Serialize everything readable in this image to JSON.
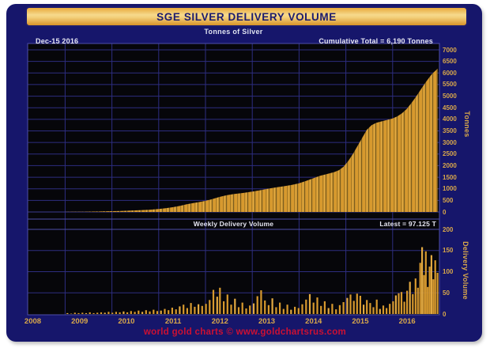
{
  "header": {
    "title": "SGE SILVER DELIVERY VOLUME"
  },
  "footer": {
    "credit": "world gold charts © www.goldchartsrus.com"
  },
  "colors": {
    "frame_navy": "#16166b",
    "panel_black": "#06060a",
    "grid_blue": "#2d2d80",
    "border_blue": "#4d4da8",
    "bar_gold": "#d7992e",
    "tick_gold": "#d9a84a",
    "annotation_white": "#e6e6f2",
    "title_navy": "#1b1b6e",
    "credit_red": "#cc1033"
  },
  "chart_data": {
    "type": "area+bar",
    "x": {
      "ticks": [
        2008,
        2009,
        2010,
        2011,
        2012,
        2013,
        2014,
        2015,
        2016
      ],
      "lim": [
        2008.2,
        2017.0
      ]
    },
    "panels": [
      {
        "name": "cumulative",
        "title": "Tonnes of Silver",
        "annotation_left": "Dec-15 2016",
        "annotation_right": "Cumulative Total = 6,190 Tonnes",
        "ylabel": "Tonnes",
        "ylim": [
          0,
          7000
        ],
        "yticks": [
          7000,
          6500,
          6000,
          5500,
          5000,
          4500,
          4000,
          3500,
          3000,
          2500,
          2000,
          1500,
          1000,
          500,
          0
        ],
        "series": {
          "name": "Cumulative SGE Silver Delivery (Tonnes)",
          "points": [
            [
              2009.0,
              3
            ],
            [
              2009.2,
              6
            ],
            [
              2009.4,
              10
            ],
            [
              2009.6,
              16
            ],
            [
              2009.8,
              24
            ],
            [
              2010.0,
              34
            ],
            [
              2010.2,
              46
            ],
            [
              2010.4,
              60
            ],
            [
              2010.6,
              76
            ],
            [
              2010.8,
              96
            ],
            [
              2011.0,
              125
            ],
            [
              2011.15,
              160
            ],
            [
              2011.3,
              205
            ],
            [
              2011.45,
              260
            ],
            [
              2011.6,
              330
            ],
            [
              2011.75,
              390
            ],
            [
              2011.9,
              440
            ],
            [
              2012.0,
              480
            ],
            [
              2012.1,
              530
            ],
            [
              2012.2,
              590
            ],
            [
              2012.3,
              650
            ],
            [
              2012.45,
              720
            ],
            [
              2012.6,
              770
            ],
            [
              2012.8,
              820
            ],
            [
              2013.0,
              880
            ],
            [
              2013.15,
              930
            ],
            [
              2013.3,
              990
            ],
            [
              2013.5,
              1060
            ],
            [
              2013.7,
              1120
            ],
            [
              2013.85,
              1170
            ],
            [
              2014.0,
              1240
            ],
            [
              2014.15,
              1340
            ],
            [
              2014.3,
              1450
            ],
            [
              2014.45,
              1560
            ],
            [
              2014.6,
              1640
            ],
            [
              2014.75,
              1720
            ],
            [
              2014.85,
              1800
            ],
            [
              2014.95,
              1950
            ],
            [
              2015.05,
              2200
            ],
            [
              2015.15,
              2500
            ],
            [
              2015.25,
              2850
            ],
            [
              2015.35,
              3200
            ],
            [
              2015.45,
              3550
            ],
            [
              2015.55,
              3750
            ],
            [
              2015.65,
              3850
            ],
            [
              2015.8,
              3930
            ],
            [
              2015.9,
              3980
            ],
            [
              2016.0,
              4040
            ],
            [
              2016.1,
              4130
            ],
            [
              2016.2,
              4260
            ],
            [
              2016.3,
              4450
            ],
            [
              2016.4,
              4700
            ],
            [
              2016.5,
              4980
            ],
            [
              2016.6,
              5280
            ],
            [
              2016.7,
              5580
            ],
            [
              2016.78,
              5800
            ],
            [
              2016.85,
              5980
            ],
            [
              2016.92,
              6110
            ],
            [
              2016.96,
              6190
            ]
          ]
        }
      },
      {
        "name": "weekly",
        "label": "Weekly Delivery Volume",
        "latest": "Latest = 97.125 T",
        "ylabel": "Delivery Volume",
        "ylim": [
          0,
          200
        ],
        "yticks": [
          200,
          150,
          100,
          50,
          0
        ],
        "series": {
          "name": "Weekly Delivery Volume (Tonnes)",
          "bars": [
            [
              2009.05,
              2
            ],
            [
              2009.13,
              1
            ],
            [
              2009.21,
              3
            ],
            [
              2009.29,
              2
            ],
            [
              2009.37,
              3
            ],
            [
              2009.45,
              2
            ],
            [
              2009.53,
              4
            ],
            [
              2009.61,
              2
            ],
            [
              2009.69,
              3
            ],
            [
              2009.77,
              4
            ],
            [
              2009.85,
              3
            ],
            [
              2009.93,
              5
            ],
            [
              2010.01,
              3
            ],
            [
              2010.09,
              5
            ],
            [
              2010.17,
              4
            ],
            [
              2010.25,
              6
            ],
            [
              2010.33,
              4
            ],
            [
              2010.41,
              7
            ],
            [
              2010.49,
              5
            ],
            [
              2010.57,
              8
            ],
            [
              2010.65,
              5
            ],
            [
              2010.73,
              9
            ],
            [
              2010.81,
              6
            ],
            [
              2010.89,
              10
            ],
            [
              2010.97,
              7
            ],
            [
              2011.05,
              8
            ],
            [
              2011.13,
              12
            ],
            [
              2011.21,
              9
            ],
            [
              2011.29,
              15
            ],
            [
              2011.37,
              11
            ],
            [
              2011.45,
              18
            ],
            [
              2011.53,
              22
            ],
            [
              2011.61,
              14
            ],
            [
              2011.69,
              26
            ],
            [
              2011.77,
              17
            ],
            [
              2011.85,
              23
            ],
            [
              2011.93,
              19
            ],
            [
              2012.01,
              24
            ],
            [
              2012.09,
              33
            ],
            [
              2012.17,
              57
            ],
            [
              2012.25,
              41
            ],
            [
              2012.31,
              62
            ],
            [
              2012.39,
              30
            ],
            [
              2012.47,
              46
            ],
            [
              2012.55,
              22
            ],
            [
              2012.63,
              36
            ],
            [
              2012.71,
              16
            ],
            [
              2012.79,
              27
            ],
            [
              2012.87,
              13
            ],
            [
              2012.95,
              20
            ],
            [
              2013.03,
              25
            ],
            [
              2013.11,
              42
            ],
            [
              2013.19,
              56
            ],
            [
              2013.27,
              32
            ],
            [
              2013.35,
              21
            ],
            [
              2013.43,
              37
            ],
            [
              2013.51,
              16
            ],
            [
              2013.59,
              27
            ],
            [
              2013.67,
              12
            ],
            [
              2013.75,
              22
            ],
            [
              2013.83,
              10
            ],
            [
              2013.91,
              17
            ],
            [
              2013.99,
              14
            ],
            [
              2014.07,
              23
            ],
            [
              2014.15,
              34
            ],
            [
              2014.23,
              47
            ],
            [
              2014.31,
              27
            ],
            [
              2014.39,
              39
            ],
            [
              2014.47,
              19
            ],
            [
              2014.55,
              30
            ],
            [
              2014.63,
              14
            ],
            [
              2014.71,
              24
            ],
            [
              2014.79,
              11
            ],
            [
              2014.87,
              21
            ],
            [
              2014.95,
              28
            ],
            [
              2015.03,
              38
            ],
            [
              2015.1,
              46
            ],
            [
              2015.17,
              31
            ],
            [
              2015.24,
              48
            ],
            [
              2015.31,
              43
            ],
            [
              2015.38,
              22
            ],
            [
              2015.45,
              33
            ],
            [
              2015.52,
              26
            ],
            [
              2015.59,
              16
            ],
            [
              2015.66,
              34
            ],
            [
              2015.73,
              12
            ],
            [
              2015.8,
              20
            ],
            [
              2015.87,
              14
            ],
            [
              2015.94,
              24
            ],
            [
              2016.01,
              30
            ],
            [
              2016.07,
              44
            ],
            [
              2016.13,
              49
            ],
            [
              2016.19,
              52
            ],
            [
              2016.25,
              29
            ],
            [
              2016.31,
              55
            ],
            [
              2016.37,
              76
            ],
            [
              2016.43,
              47
            ],
            [
              2016.49,
              84
            ],
            [
              2016.54,
              62
            ],
            [
              2016.59,
              121
            ],
            [
              2016.63,
              158
            ],
            [
              2016.67,
              92
            ],
            [
              2016.71,
              148
            ],
            [
              2016.75,
              64
            ],
            [
              2016.79,
              112
            ],
            [
              2016.83,
              139
            ],
            [
              2016.87,
              82
            ],
            [
              2016.91,
              127
            ],
            [
              2016.96,
              97.125
            ]
          ]
        }
      }
    ]
  }
}
